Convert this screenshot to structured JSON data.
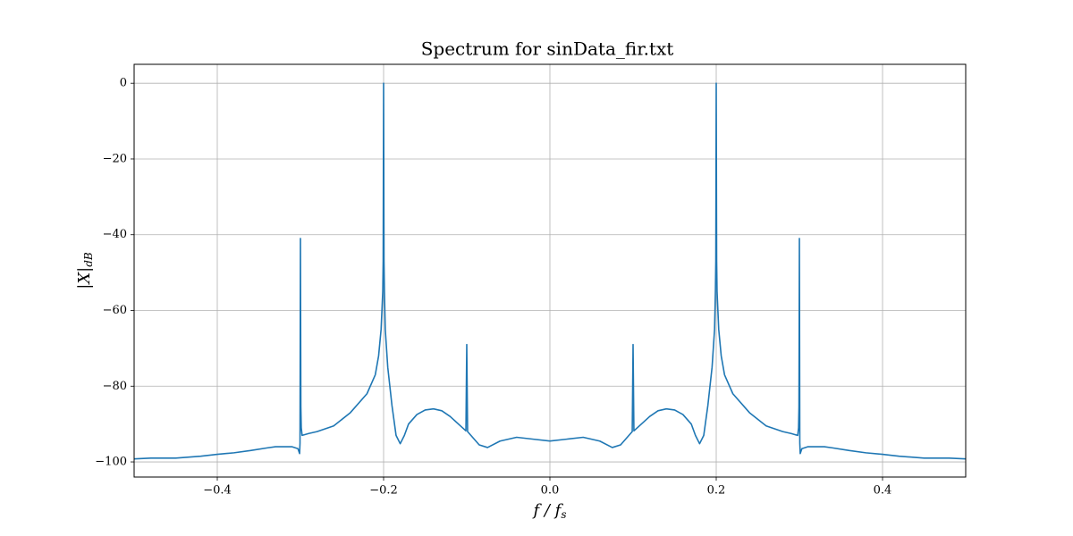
{
  "chart_data": {
    "type": "line",
    "title": "Spectrum for sinData_fir.txt",
    "xlabel": {
      "main": "f / f",
      "sub": "s"
    },
    "ylabel": {
      "main": "|X|",
      "sub": "dB"
    },
    "grid": true,
    "xlim": [
      -0.5,
      0.5
    ],
    "ylim": [
      -104,
      5
    ],
    "xticks": [
      {
        "value": -0.4,
        "label": "−0.4"
      },
      {
        "value": -0.2,
        "label": "−0.2"
      },
      {
        "value": 0,
        "label": "0.0"
      },
      0.2,
      0.4
    ],
    "yticks": [
      {
        "value": -100,
        "label": "−100"
      },
      {
        "value": -80,
        "label": "−80"
      },
      {
        "value": -60,
        "label": "−60"
      },
      {
        "value": -40,
        "label": "−40"
      },
      {
        "value": -20,
        "label": "−20"
      },
      0
    ],
    "x": [
      -0.5,
      -0.48,
      -0.45,
      -0.42,
      -0.4,
      -0.38,
      -0.36,
      -0.34,
      -0.33,
      -0.31,
      -0.303,
      -0.301,
      -0.3005,
      -0.3,
      -0.2995,
      -0.299,
      -0.298,
      -0.29,
      -0.28,
      -0.26,
      -0.24,
      -0.22,
      -0.21,
      -0.206,
      -0.203,
      -0.201,
      -0.2005,
      -0.2,
      -0.1995,
      -0.199,
      -0.198,
      -0.195,
      -0.19,
      -0.185,
      -0.18,
      -0.175,
      -0.17,
      -0.16,
      -0.15,
      -0.14,
      -0.13,
      -0.12,
      -0.11,
      -0.101,
      -0.1,
      -0.099,
      -0.095,
      -0.085,
      -0.075,
      -0.06,
      -0.04,
      -0.02,
      0.0,
      0.02,
      0.04,
      0.06,
      0.075,
      0.085,
      0.095,
      0.099,
      0.1,
      0.101,
      0.11,
      0.12,
      0.13,
      0.14,
      0.15,
      0.16,
      0.17,
      0.175,
      0.18,
      0.185,
      0.19,
      0.195,
      0.198,
      0.199,
      0.1995,
      0.2,
      0.2005,
      0.201,
      0.203,
      0.206,
      0.21,
      0.22,
      0.24,
      0.26,
      0.28,
      0.29,
      0.298,
      0.299,
      0.2995,
      0.3,
      0.3005,
      0.301,
      0.303,
      0.31,
      0.33,
      0.34,
      0.36,
      0.38,
      0.4,
      0.42,
      0.45,
      0.48,
      0.5
    ],
    "series": [
      {
        "color": "#1f77b4",
        "values": [
          -99.2,
          -99,
          -99,
          -98.5,
          -98,
          -97.6,
          -97,
          -96.3,
          -96,
          -96,
          -96.5,
          -97.8,
          -95,
          -41,
          -85.5,
          -91,
          -93,
          -92.5,
          -92,
          -90.5,
          -87,
          -82,
          -77,
          -72,
          -65,
          -55,
          -47,
          0,
          -47,
          -55,
          -65,
          -75,
          -85,
          -93,
          -95.2,
          -93,
          -90,
          -87.5,
          -86.3,
          -86,
          -86.5,
          -88,
          -90,
          -91.8,
          -69,
          -92,
          -93,
          -95.5,
          -96.2,
          -94.5,
          -93.5,
          -94,
          -94.5,
          -94,
          -93.5,
          -94.5,
          -96.2,
          -95.5,
          -93,
          -92,
          -69,
          -91.8,
          -90,
          -88,
          -86.5,
          -86,
          -86.3,
          -87.5,
          -90,
          -93,
          -95.2,
          -93,
          -85,
          -75,
          -65,
          -55,
          -47,
          0,
          -47,
          -55,
          -65,
          -72,
          -77,
          -82,
          -87,
          -90.5,
          -92,
          -92.5,
          -93,
          -91,
          -85.5,
          -41,
          -95,
          -97.8,
          -96.5,
          -96,
          -96,
          -96.3,
          -97,
          -97.6,
          -98,
          -98.5,
          -99,
          -99,
          -99.2
        ]
      }
    ]
  }
}
